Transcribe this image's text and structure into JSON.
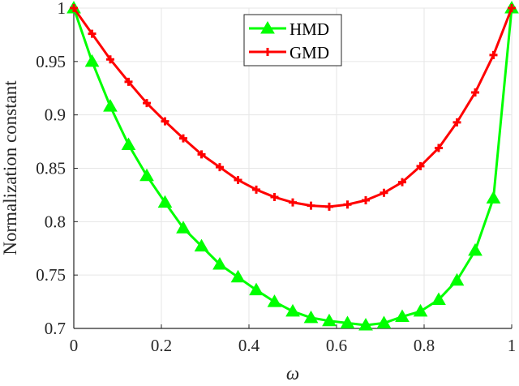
{
  "chart_data": {
    "type": "line",
    "title": "",
    "xlabel": "ω",
    "ylabel": "Normalization constant",
    "xlim": [
      0,
      1
    ],
    "ylim": [
      0.7,
      1
    ],
    "grid": true,
    "legend_position": "top-center",
    "x_ticks": [
      "0",
      "0.2",
      "0.4",
      "0.6",
      "0.8",
      "1"
    ],
    "y_ticks": [
      "0.7",
      "0.75",
      "0.8",
      "0.85",
      "0.9",
      "0.95",
      "1"
    ],
    "x": [
      0,
      0.0417,
      0.0833,
      0.125,
      0.1667,
      0.2083,
      0.25,
      0.2917,
      0.3333,
      0.375,
      0.4167,
      0.4583,
      0.5,
      0.5417,
      0.5833,
      0.625,
      0.6667,
      0.7083,
      0.75,
      0.7917,
      0.8333,
      0.875,
      0.9167,
      0.9583,
      1
    ],
    "series": [
      {
        "name": "HMD",
        "color": "#00ff00",
        "marker": "triangle",
        "values": [
          1.0,
          0.95,
          0.908,
          0.872,
          0.843,
          0.818,
          0.794,
          0.777,
          0.76,
          0.748,
          0.736,
          0.725,
          0.716,
          0.71,
          0.707,
          0.705,
          0.703,
          0.705,
          0.711,
          0.716,
          0.727,
          0.745,
          0.773,
          0.822,
          1.0
        ]
      },
      {
        "name": "GMD",
        "color": "#ff0000",
        "marker": "plus",
        "values": [
          1.0,
          0.976,
          0.952,
          0.931,
          0.911,
          0.894,
          0.878,
          0.863,
          0.851,
          0.839,
          0.83,
          0.823,
          0.818,
          0.815,
          0.814,
          0.816,
          0.82,
          0.827,
          0.837,
          0.852,
          0.869,
          0.893,
          0.921,
          0.956,
          1.0
        ]
      }
    ]
  }
}
